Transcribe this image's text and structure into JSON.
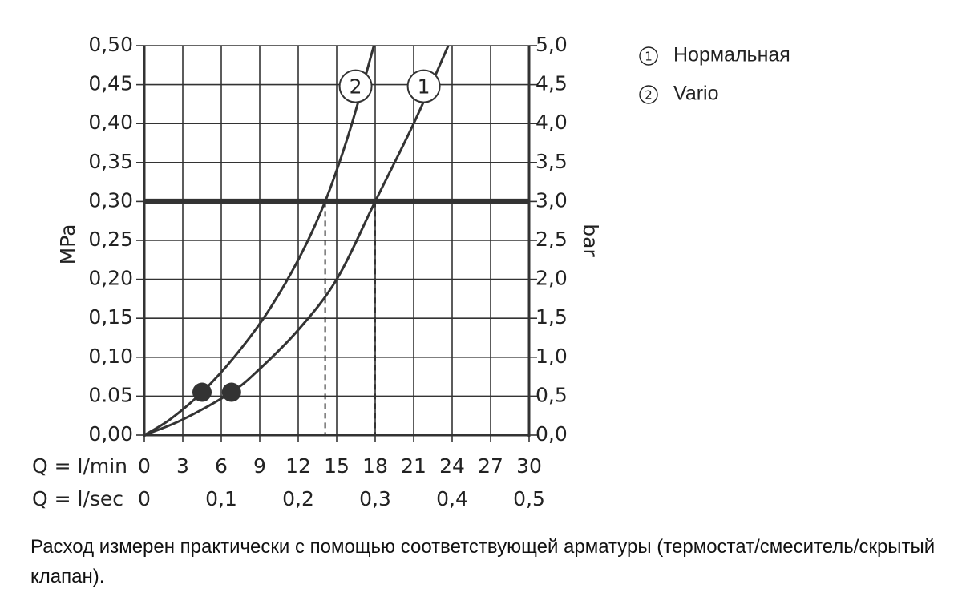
{
  "chart_data": {
    "type": "line",
    "xlabel": "Q = l/min",
    "x2label": "Q = l/sec",
    "ylabel": "MPa",
    "y2label": "bar",
    "xlim": [
      0,
      30
    ],
    "xticks": [
      0,
      3,
      6,
      9,
      12,
      15,
      18,
      21,
      24,
      27,
      30
    ],
    "x2lim": [
      0,
      0.5
    ],
    "x2ticks": [
      0,
      {
        "value": 0.1,
        "label": "0,1"
      },
      {
        "value": 0.2,
        "label": "0,2"
      },
      {
        "value": 0.3,
        "label": "0,3"
      },
      {
        "value": 0.4,
        "label": "0,4"
      },
      {
        "value": 0.5,
        "label": "0,5"
      }
    ],
    "ylim": [
      0,
      0.5
    ],
    "yticks": [
      {
        "value": 0,
        "label": "0,00"
      },
      {
        "value": 0.05,
        "label": "0.05"
      },
      {
        "value": 0.1,
        "label": "0,10"
      },
      {
        "value": 0.15,
        "label": "0,15"
      },
      {
        "value": 0.2,
        "label": "0,20"
      },
      {
        "value": 0.25,
        "label": "0,25"
      },
      {
        "value": 0.3,
        "label": "0,30"
      },
      {
        "value": 0.35,
        "label": "0,35"
      },
      {
        "value": 0.4,
        "label": "0,40"
      },
      {
        "value": 0.45,
        "label": "0,45"
      },
      {
        "value": 0.5,
        "label": "0,50"
      }
    ],
    "y2lim": [
      0,
      5
    ],
    "y2ticks": [
      {
        "value": 0,
        "label": "0,0"
      },
      {
        "value": 0.5,
        "label": "0,5"
      },
      {
        "value": 1,
        "label": "1,0"
      },
      {
        "value": 1.5,
        "label": "1,5"
      },
      {
        "value": 2,
        "label": "2,0"
      },
      {
        "value": 2.5,
        "label": "2,5"
      },
      {
        "value": 3,
        "label": "3,0"
      },
      {
        "value": 3.5,
        "label": "3,5"
      },
      {
        "value": 4,
        "label": "4,0"
      },
      {
        "value": 4.5,
        "label": "4,5"
      },
      {
        "value": 5,
        "label": "5,0"
      }
    ],
    "grid": true,
    "color": "#333333",
    "reference_line": 0.3,
    "drop_lines": [
      14.1,
      18
    ],
    "series": [
      {
        "name": "Нормальная",
        "label": "1",
        "x": [
          0,
          3,
          6.8,
          9,
          12,
          15,
          18,
          21,
          23.7
        ],
        "values": [
          0,
          0.02,
          0.055,
          0.085,
          0.135,
          0.2,
          0.3,
          0.4,
          0.5
        ],
        "marker": {
          "x": 6.8,
          "y": 0.055
        }
      },
      {
        "name": "Vario",
        "label": "2",
        "x": [
          0,
          2,
          4.5,
          7,
          9.5,
          12,
          14.1,
          16,
          17.9
        ],
        "values": [
          0,
          0.02,
          0.055,
          0.1,
          0.155,
          0.225,
          0.3,
          0.39,
          0.5
        ],
        "marker": {
          "x": 4.5,
          "y": 0.055
        }
      }
    ]
  },
  "note": "Расход измерен практически с помощью соответствующей арматуры (термостат/смеситель/скрытый клапан)."
}
